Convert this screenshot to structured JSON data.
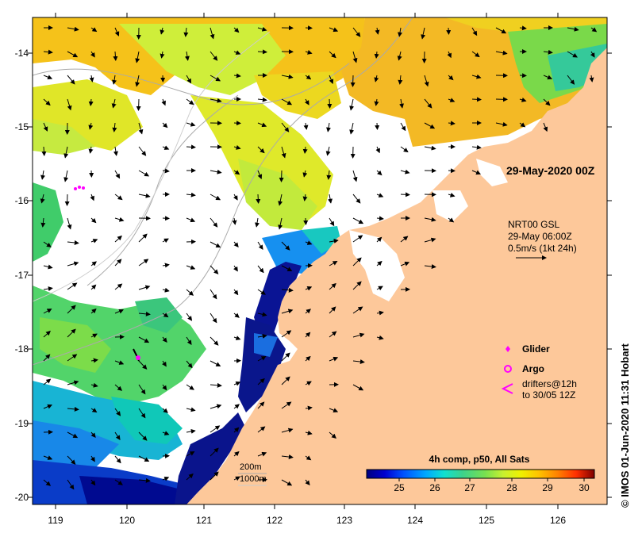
{
  "map": {
    "date_label": "29-May-2020 00Z",
    "current_box": {
      "line1": "NRT00 GSL",
      "line2": "29-May 06:00Z",
      "line3": "0.5m/s (1kt 24h)"
    },
    "legend": {
      "glider": "Glider",
      "argo": "Argo",
      "drifters_line1": "drifters@12h",
      "drifters_line2": "to 30/05 12Z",
      "glider_color": "#ff00ff",
      "argo_color": "#ff00ff",
      "drifter_color": "#ff00ff"
    },
    "isobaths": {
      "a": "200m",
      "b": "1000m"
    },
    "colorbar": {
      "title": "4h comp, p50, All Sats",
      "ticks": [
        "25",
        "26",
        "27",
        "28",
        "29",
        "30"
      ],
      "min": 24.0,
      "max": 30.5,
      "colors": [
        "#00007f",
        "#0000d0",
        "#0050ff",
        "#00a8ff",
        "#10e0d0",
        "#3cd28c",
        "#78e050",
        "#c8f030",
        "#f0f000",
        "#ffc000",
        "#ff8000",
        "#ff3000",
        "#c00000",
        "#7f0000"
      ]
    },
    "axes": {
      "x_ticks": [
        "119",
        "120",
        "121",
        "122",
        "123",
        "124",
        "125",
        "126"
      ],
      "y_ticks": [
        "-14",
        "-15",
        "-16",
        "-17",
        "-18",
        "-19",
        "-20"
      ]
    },
    "credit": "IMOS 01-Jun-2020 11:31 Hobart",
    "copyright_symbol": "©",
    "land_color": "#fdc89a",
    "cloud_color": "#ffffff"
  }
}
